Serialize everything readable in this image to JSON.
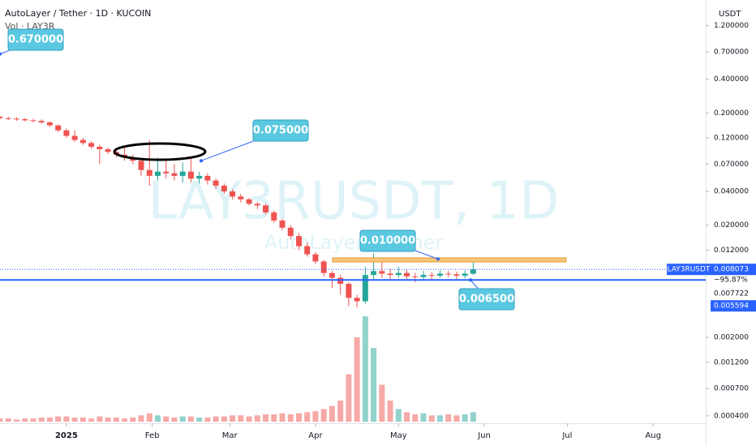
{
  "chart_data": {
    "type": "candlestick",
    "title": "AutoLayer / Tether · 1D · KUCOIN",
    "volume_label": "Vol · LAY3R",
    "watermark": "LAY3RUSDT, 1D",
    "watermark_subtitle": "AutoLayer / Tether",
    "y_axis_label": "USDT",
    "log_scale": true,
    "up_color": "#26a69a",
    "down_color": "#ef5350",
    "x": [
      0,
      3,
      6,
      9,
      12,
      15,
      18,
      21,
      24,
      27,
      30,
      33,
      36,
      39,
      42,
      45,
      48,
      51,
      54,
      57,
      60,
      63,
      66,
      69,
      72,
      75,
      78,
      81,
      84,
      87,
      90,
      93,
      96,
      99,
      102,
      105,
      108,
      111,
      114,
      117,
      120,
      123,
      126,
      129,
      132,
      135,
      138,
      141,
      144,
      147,
      150,
      153,
      156,
      159,
      162,
      165,
      168,
      171
    ],
    "open": [
      0.185,
      0.18,
      0.178,
      0.176,
      0.172,
      0.17,
      0.165,
      0.155,
      0.14,
      0.125,
      0.115,
      0.108,
      0.1,
      0.095,
      0.09,
      0.085,
      0.08,
      0.075,
      0.062,
      0.055,
      0.06,
      0.058,
      0.055,
      0.06,
      0.052,
      0.055,
      0.05,
      0.045,
      0.04,
      0.036,
      0.034,
      0.031,
      0.03,
      0.026,
      0.022,
      0.019,
      0.016,
      0.013,
      0.011,
      0.0095,
      0.0075,
      0.0068,
      0.006,
      0.0045,
      0.0042,
      0.0072,
      0.0078,
      0.0074,
      0.0072,
      0.0075,
      0.007,
      0.0069,
      0.0072,
      0.0071,
      0.0074,
      0.0073,
      0.0071,
      0.0074
    ],
    "high": [
      0.19,
      0.185,
      0.183,
      0.18,
      0.178,
      0.175,
      0.168,
      0.158,
      0.145,
      0.14,
      0.12,
      0.112,
      0.104,
      0.098,
      0.094,
      0.1,
      0.085,
      0.078,
      0.115,
      0.08,
      0.075,
      0.07,
      0.072,
      0.08,
      0.06,
      0.058,
      0.052,
      0.047,
      0.042,
      0.038,
      0.035,
      0.032,
      0.031,
      0.027,
      0.023,
      0.02,
      0.017,
      0.014,
      0.0115,
      0.0098,
      0.0078,
      0.0072,
      0.0062,
      0.0048,
      0.0085,
      0.0112,
      0.0098,
      0.0082,
      0.0085,
      0.008,
      0.0075,
      0.0078,
      0.0076,
      0.0079,
      0.0078,
      0.0077,
      0.0079,
      0.0098
    ],
    "low": [
      0.175,
      0.172,
      0.17,
      0.168,
      0.165,
      0.16,
      0.15,
      0.135,
      0.12,
      0.11,
      0.104,
      0.096,
      0.07,
      0.086,
      0.08,
      0.075,
      0.07,
      0.055,
      0.045,
      0.05,
      0.052,
      0.05,
      0.048,
      0.048,
      0.047,
      0.046,
      0.042,
      0.038,
      0.034,
      0.032,
      0.03,
      0.028,
      0.025,
      0.021,
      0.018,
      0.015,
      0.012,
      0.0105,
      0.009,
      0.007,
      0.0055,
      0.0048,
      0.0038,
      0.0037,
      0.004,
      0.0065,
      0.0068,
      0.0066,
      0.0068,
      0.0066,
      0.0062,
      0.0066,
      0.0066,
      0.0068,
      0.0069,
      0.0066,
      0.0067,
      0.0072
    ],
    "close": [
      0.18,
      0.178,
      0.176,
      0.172,
      0.17,
      0.165,
      0.155,
      0.14,
      0.125,
      0.115,
      0.108,
      0.1,
      0.095,
      0.09,
      0.085,
      0.08,
      0.075,
      0.062,
      0.055,
      0.06,
      0.058,
      0.055,
      0.06,
      0.052,
      0.055,
      0.05,
      0.045,
      0.04,
      0.036,
      0.034,
      0.031,
      0.03,
      0.026,
      0.022,
      0.019,
      0.016,
      0.013,
      0.011,
      0.0095,
      0.0075,
      0.0068,
      0.006,
      0.0045,
      0.0042,
      0.0072,
      0.0078,
      0.0074,
      0.0072,
      0.0075,
      0.007,
      0.0069,
      0.0072,
      0.0071,
      0.0074,
      0.0073,
      0.0071,
      0.0074,
      0.008073
    ],
    "volume": [
      3,
      3,
      2,
      3,
      3,
      4,
      4,
      5,
      5,
      4,
      4,
      3,
      5,
      4,
      4,
      3,
      4,
      6,
      8,
      6,
      5,
      4,
      5,
      5,
      4,
      4,
      5,
      5,
      6,
      6,
      5,
      6,
      7,
      7,
      8,
      7,
      8,
      9,
      10,
      12,
      15,
      20,
      45,
      80,
      100,
      70,
      35,
      20,
      12,
      9,
      7,
      8,
      6,
      6,
      7,
      6,
      7,
      9
    ],
    "xlim": [
      0,
      255
    ],
    "xticks": [
      {
        "value": 24,
        "label": "2025"
      },
      {
        "value": 55,
        "label": "Feb"
      },
      {
        "value": 83,
        "label": "Mar"
      },
      {
        "value": 114,
        "label": "Apr"
      },
      {
        "value": 144,
        "label": "May"
      },
      {
        "value": 175,
        "label": "Jun"
      },
      {
        "value": 205,
        "label": "Jul"
      },
      {
        "value": 236,
        "label": "Aug"
      }
    ],
    "ylim": [
      0.000355,
      2.03
    ],
    "yticks": [
      {
        "value": 1.2,
        "label": "1.200000"
      },
      {
        "value": 0.7,
        "label": "0.700000"
      },
      {
        "value": 0.4,
        "label": "0.400000"
      },
      {
        "value": 0.2,
        "label": "0.200000"
      },
      {
        "value": 0.12,
        "label": "0.120000"
      },
      {
        "value": 0.07,
        "label": "0.070000"
      },
      {
        "value": 0.04,
        "label": "0.040000"
      },
      {
        "value": 0.02,
        "label": "0.020000"
      },
      {
        "value": 0.012,
        "label": "0.012000"
      },
      {
        "value": 0.002,
        "label": "0.002000"
      },
      {
        "value": 0.0012,
        "label": "0.001200"
      },
      {
        "value": 0.0007,
        "label": "0.000700"
      },
      {
        "value": 0.0004,
        "label": "0.000400"
      }
    ],
    "annotations": [
      {
        "value": 0.67,
        "label": "0.670000"
      },
      {
        "value": 0.075,
        "label": "0.075000"
      },
      {
        "value": 0.01,
        "label": "0.010000"
      },
      {
        "value": 0.0065,
        "label": "0.006500"
      }
    ],
    "price_line": {
      "name": "LAY3RUSDT",
      "value": 0.008073,
      "label": "0.008073",
      "change": -95.87,
      "change_label": "−95.87%"
    },
    "price_tags": [
      {
        "value": 0.007722,
        "label": "0.007722"
      },
      {
        "value": 0.005594,
        "label": "0.005594"
      }
    ]
  }
}
